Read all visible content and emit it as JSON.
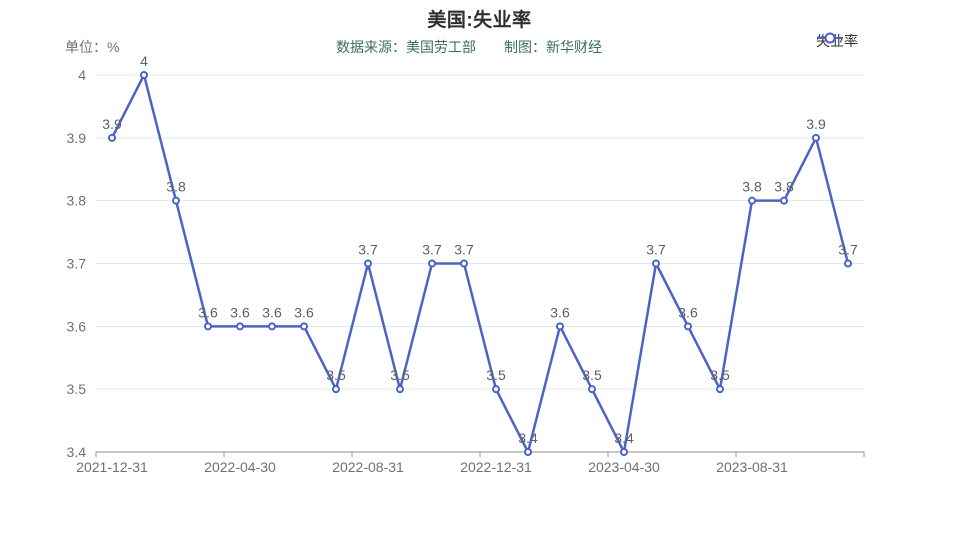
{
  "header": {
    "title": "美国:失业率",
    "unit": "单位：%",
    "source": "数据来源：美国劳工部",
    "credit": "制图：新华财经"
  },
  "legend": {
    "label": "失业率"
  },
  "colors": {
    "line": "#4c63c6",
    "marker_fill": "#ffffff",
    "grid": "#e2e7f1",
    "axis": "#8a8f99",
    "tick_label": "#6e7079",
    "data_label": "#5e6066",
    "title": "#2f2f2f",
    "subtitle_green": "#3c7158"
  },
  "chart_data": {
    "type": "line",
    "series": [
      {
        "name": "失业率",
        "values": [
          3.9,
          4,
          3.8,
          3.6,
          3.6,
          3.6,
          3.6,
          3.5,
          3.7,
          3.5,
          3.7,
          3.7,
          3.5,
          3.4,
          3.6,
          3.5,
          3.4,
          3.7,
          3.6,
          3.5,
          3.8,
          3.8,
          3.9,
          3.7
        ]
      }
    ],
    "n_points": 24,
    "x_tick_labels": [
      "2021-12-31",
      "2022-04-30",
      "2022-08-31",
      "2022-12-31",
      "2023-04-30",
      "2023-08-31"
    ],
    "x_tick_every": 4,
    "ylim": [
      3.4,
      4
    ],
    "y_ticks": [
      3.4,
      3.5,
      3.6,
      3.7,
      3.8,
      3.9,
      4
    ],
    "grid": true,
    "data_labels": true,
    "legend_position": "top-right",
    "title": "美国:失业率",
    "xlabel": "",
    "ylabel": "单位：%"
  }
}
